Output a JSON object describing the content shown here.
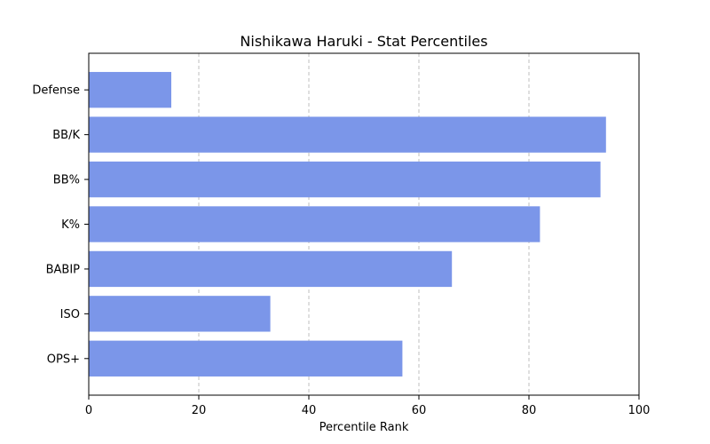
{
  "chart_data": {
    "type": "bar",
    "orientation": "horizontal",
    "title": "Nishikawa Haruki - Stat Percentiles",
    "xlabel": "Percentile Rank",
    "ylabel": "",
    "xlim": [
      0,
      100
    ],
    "xticks": [
      0,
      20,
      40,
      60,
      80,
      100
    ],
    "grid": "x-dashed",
    "bar_color": "#7b96e9",
    "categories": [
      "Defense",
      "BB/K",
      "BB%",
      "K%",
      "BABIP",
      "ISO",
      "OPS+"
    ],
    "values": [
      15,
      94,
      93,
      82,
      66,
      33,
      57
    ]
  }
}
